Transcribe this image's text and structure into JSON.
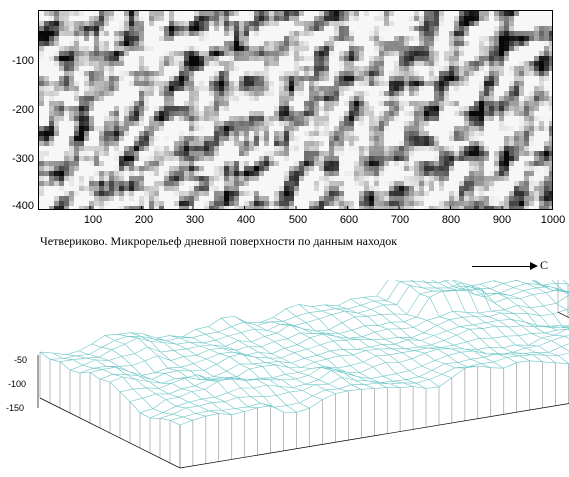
{
  "relief_map": {
    "y_ticks": [
      "-100",
      "-200",
      "-300",
      "-400"
    ],
    "x_ticks": [
      "100",
      "200",
      "300",
      "400",
      "500",
      "600",
      "700",
      "800",
      "900",
      "1000"
    ]
  },
  "caption": "Четвериково. Микрорельеф дневной поверхности по данным находок",
  "north_label": "С",
  "surface_3d": {
    "z_ticks": [
      "-50",
      "-100",
      "-150"
    ],
    "mesh_color": "#6ec6c8"
  },
  "colors": {
    "relief_light": "#f2f2f2",
    "relief_dark": "#111111"
  }
}
